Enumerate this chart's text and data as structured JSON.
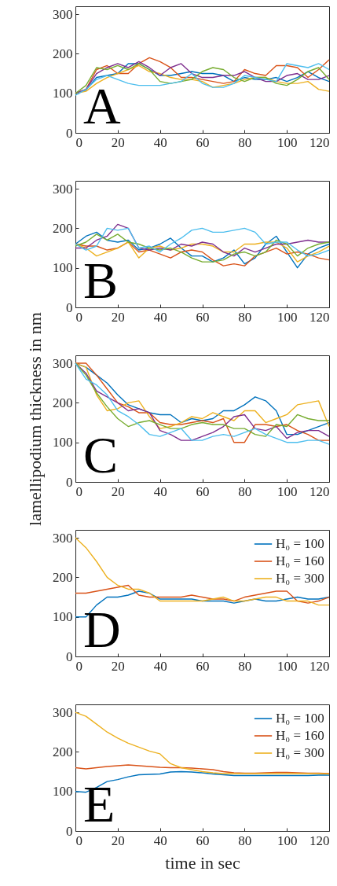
{
  "chart_data": [
    {
      "type": "line",
      "annotations": [
        "A"
      ],
      "x": [
        0,
        5,
        10,
        15,
        20,
        25,
        30,
        35,
        40,
        45,
        50,
        55,
        60,
        65,
        70,
        75,
        80,
        85,
        90,
        95,
        100,
        105,
        110,
        115,
        120
      ],
      "xlim": [
        0,
        120
      ],
      "xticks": [
        0,
        20,
        40,
        60,
        80,
        100,
        120
      ],
      "ylim": [
        0,
        320
      ],
      "yticks": [
        0,
        100,
        200,
        300
      ],
      "grid": false,
      "legend": false,
      "series": [
        {
          "color": "#0072bd",
          "values": [
            100,
            108,
            140,
            145,
            150,
            175,
            175,
            160,
            145,
            145,
            150,
            155,
            150,
            150,
            145,
            130,
            140,
            135,
            135,
            140,
            130,
            140,
            155,
            140,
            130
          ]
        },
        {
          "color": "#d95319",
          "values": [
            100,
            110,
            160,
            170,
            150,
            150,
            175,
            190,
            180,
            165,
            140,
            140,
            135,
            130,
            125,
            130,
            160,
            150,
            145,
            170,
            170,
            165,
            140,
            160,
            185
          ]
        },
        {
          "color": "#edb120",
          "values": [
            100,
            105,
            125,
            140,
            150,
            160,
            170,
            155,
            150,
            140,
            135,
            135,
            130,
            115,
            120,
            125,
            135,
            140,
            140,
            130,
            125,
            125,
            130,
            110,
            105
          ]
        },
        {
          "color": "#7e2f8e",
          "values": [
            100,
            110,
            150,
            165,
            175,
            165,
            180,
            165,
            145,
            165,
            175,
            150,
            140,
            140,
            145,
            145,
            155,
            140,
            130,
            130,
            145,
            150,
            135,
            135,
            145
          ]
        },
        {
          "color": "#77ac30",
          "values": [
            100,
            120,
            165,
            160,
            170,
            160,
            175,
            160,
            130,
            125,
            130,
            135,
            155,
            165,
            160,
            140,
            130,
            140,
            140,
            125,
            120,
            135,
            155,
            165,
            135
          ]
        },
        {
          "color": "#4dbeee",
          "values": [
            95,
            110,
            135,
            145,
            135,
            125,
            120,
            120,
            120,
            125,
            130,
            150,
            125,
            115,
            115,
            125,
            145,
            140,
            135,
            130,
            175,
            170,
            165,
            175,
            160
          ]
        }
      ]
    },
    {
      "type": "line",
      "annotations": [
        "B"
      ],
      "x": [
        0,
        5,
        10,
        15,
        20,
        25,
        30,
        35,
        40,
        45,
        50,
        55,
        60,
        65,
        70,
        75,
        80,
        85,
        90,
        95,
        100,
        105,
        110,
        115,
        120
      ],
      "xlim": [
        0,
        120
      ],
      "xticks": [
        0,
        20,
        40,
        60,
        80,
        100,
        120
      ],
      "ylim": [
        0,
        320
      ],
      "yticks": [
        0,
        100,
        200,
        300
      ],
      "grid": false,
      "legend": false,
      "series": [
        {
          "color": "#0072bd",
          "values": [
            160,
            180,
            190,
            170,
            165,
            170,
            145,
            150,
            160,
            175,
            150,
            130,
            130,
            115,
            125,
            145,
            110,
            125,
            160,
            180,
            140,
            100,
            135,
            150,
            160
          ]
        },
        {
          "color": "#d95319",
          "values": [
            160,
            155,
            155,
            145,
            150,
            165,
            140,
            145,
            135,
            125,
            140,
            145,
            140,
            120,
            105,
            110,
            105,
            130,
            140,
            150,
            135,
            140,
            135,
            125,
            120
          ]
        },
        {
          "color": "#edb120",
          "values": [
            160,
            150,
            130,
            140,
            150,
            165,
            125,
            150,
            155,
            145,
            150,
            160,
            160,
            155,
            140,
            140,
            160,
            160,
            165,
            165,
            150,
            115,
            130,
            140,
            155
          ]
        },
        {
          "color": "#7e2f8e",
          "values": [
            150,
            150,
            170,
            180,
            210,
            200,
            150,
            145,
            150,
            145,
            160,
            155,
            165,
            160,
            140,
            130,
            150,
            140,
            150,
            160,
            160,
            165,
            170,
            165,
            165
          ]
        },
        {
          "color": "#77ac30",
          "values": [
            155,
            165,
            185,
            170,
            185,
            165,
            160,
            150,
            145,
            150,
            140,
            125,
            115,
            115,
            120,
            135,
            140,
            130,
            140,
            170,
            160,
            130,
            150,
            160,
            165
          ]
        },
        {
          "color": "#4dbeee",
          "values": [
            160,
            145,
            155,
            200,
            195,
            200,
            150,
            155,
            140,
            160,
            175,
            195,
            200,
            190,
            190,
            195,
            200,
            190,
            160,
            165,
            165,
            145,
            130,
            135,
            145
          ]
        }
      ]
    },
    {
      "type": "line",
      "annotations": [
        "C"
      ],
      "ylabel": "lamellipodium thickness in nm",
      "x": [
        0,
        5,
        10,
        15,
        20,
        25,
        30,
        35,
        40,
        45,
        50,
        55,
        60,
        65,
        70,
        75,
        80,
        85,
        90,
        95,
        100,
        105,
        110,
        115,
        120
      ],
      "xlim": [
        0,
        120
      ],
      "xticks": [
        0,
        20,
        40,
        60,
        80,
        100,
        120
      ],
      "ylim": [
        0,
        320
      ],
      "yticks": [
        0,
        100,
        200,
        300
      ],
      "grid": false,
      "legend": false,
      "series": [
        {
          "color": "#0072bd",
          "values": [
            300,
            290,
            270,
            250,
            220,
            195,
            185,
            175,
            170,
            170,
            150,
            160,
            155,
            160,
            180,
            180,
            195,
            215,
            205,
            180,
            120,
            120,
            130,
            140,
            150
          ]
        },
        {
          "color": "#d95319",
          "values": [
            300,
            300,
            270,
            235,
            200,
            190,
            175,
            175,
            150,
            145,
            145,
            150,
            155,
            150,
            160,
            100,
            100,
            145,
            145,
            140,
            145,
            130,
            120,
            105,
            105
          ]
        },
        {
          "color": "#edb120",
          "values": [
            300,
            290,
            220,
            180,
            185,
            200,
            205,
            165,
            135,
            140,
            150,
            165,
            160,
            175,
            165,
            155,
            180,
            180,
            150,
            160,
            170,
            195,
            200,
            205,
            140
          ]
        },
        {
          "color": "#7e2f8e",
          "values": [
            300,
            275,
            230,
            215,
            200,
            180,
            185,
            175,
            130,
            120,
            105,
            105,
            115,
            125,
            140,
            165,
            170,
            135,
            130,
            140,
            110,
            125,
            130,
            130,
            115
          ]
        },
        {
          "color": "#77ac30",
          "values": [
            300,
            270,
            225,
            190,
            160,
            140,
            150,
            155,
            145,
            135,
            135,
            145,
            150,
            145,
            145,
            135,
            135,
            120,
            115,
            145,
            140,
            170,
            160,
            155,
            155
          ]
        },
        {
          "color": "#4dbeee",
          "values": [
            300,
            260,
            245,
            220,
            180,
            165,
            145,
            120,
            115,
            125,
            135,
            105,
            105,
            115,
            120,
            115,
            125,
            135,
            120,
            110,
            100,
            100,
            105,
            105,
            95
          ]
        }
      ]
    },
    {
      "type": "line",
      "annotations": [
        "D"
      ],
      "x": [
        0,
        5,
        10,
        15,
        20,
        25,
        30,
        35,
        40,
        45,
        50,
        55,
        60,
        65,
        70,
        75,
        80,
        85,
        90,
        95,
        100,
        105,
        110,
        115,
        120
      ],
      "xlim": [
        0,
        120
      ],
      "xticks": [
        0,
        20,
        40,
        60,
        80,
        100,
        120
      ],
      "ylim": [
        0,
        320
      ],
      "yticks": [
        0,
        100,
        200,
        300
      ],
      "grid": false,
      "legend": "top right",
      "series": [
        {
          "name": "H₀ = 100",
          "color": "#0072bd",
          "values": [
            100,
            100,
            130,
            150,
            150,
            155,
            165,
            160,
            145,
            145,
            145,
            145,
            140,
            140,
            140,
            135,
            140,
            145,
            140,
            140,
            145,
            150,
            145,
            145,
            150
          ]
        },
        {
          "name": "H₀ = 160",
          "color": "#d95319",
          "values": [
            160,
            160,
            165,
            170,
            175,
            180,
            155,
            150,
            150,
            150,
            150,
            155,
            150,
            145,
            145,
            140,
            150,
            155,
            160,
            165,
            165,
            140,
            135,
            140,
            150
          ]
        },
        {
          "name": "H₀ = 300",
          "color": "#edb120",
          "values": [
            300,
            275,
            240,
            200,
            180,
            170,
            170,
            160,
            140,
            140,
            140,
            140,
            140,
            145,
            150,
            140,
            140,
            145,
            150,
            150,
            140,
            140,
            140,
            130,
            130
          ]
        }
      ]
    },
    {
      "type": "line",
      "annotations": [
        "E"
      ],
      "xlabel": "time in sec",
      "x": [
        0,
        5,
        10,
        15,
        20,
        25,
        30,
        35,
        40,
        45,
        50,
        55,
        60,
        65,
        70,
        75,
        80,
        85,
        90,
        95,
        100,
        105,
        110,
        115,
        120
      ],
      "xlim": [
        0,
        120
      ],
      "xticks": [
        0,
        20,
        40,
        60,
        80,
        100,
        120
      ],
      "ylim": [
        0,
        320
      ],
      "yticks": [
        0,
        100,
        200,
        300
      ],
      "grid": false,
      "legend": "top right",
      "series": [
        {
          "name": "H₀ = 100",
          "color": "#0072bd",
          "values": [
            100,
            98,
            110,
            125,
            130,
            137,
            142,
            143,
            144,
            149,
            150,
            149,
            147,
            144,
            142,
            140,
            140,
            140,
            140,
            140,
            140,
            140,
            140,
            141,
            141
          ]
        },
        {
          "name": "H₀ = 160",
          "color": "#d95319",
          "values": [
            160,
            157,
            160,
            163,
            165,
            167,
            165,
            163,
            161,
            160,
            160,
            159,
            157,
            155,
            150,
            147,
            146,
            146,
            147,
            148,
            148,
            147,
            146,
            146,
            145
          ]
        },
        {
          "name": "H₀ = 300",
          "color": "#edb120",
          "values": [
            300,
            290,
            270,
            250,
            235,
            222,
            212,
            202,
            195,
            170,
            160,
            155,
            150,
            147,
            145,
            145,
            145,
            145,
            145,
            145,
            145,
            145,
            145,
            145,
            144
          ]
        }
      ]
    }
  ]
}
